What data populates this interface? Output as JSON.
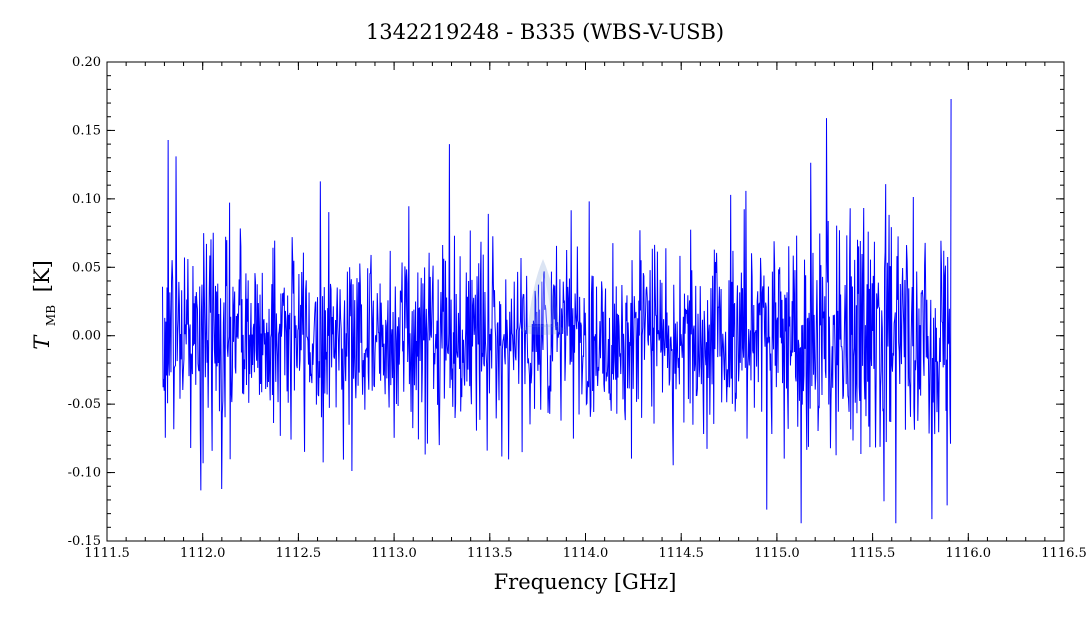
{
  "chart_data": {
    "type": "line",
    "title": "1342219248 - B335 (WBS-V-USB)",
    "xlabel": "Frequency [GHz]",
    "ylabel_main": "T",
    "ylabel_sub": "MB",
    "ylabel_unit": "[K]",
    "xlim": [
      1111.5,
      1116.5
    ],
    "ylim": [
      -0.15,
      0.2
    ],
    "x_ticks": [
      1111.5,
      1112.0,
      1112.5,
      1113.0,
      1113.5,
      1114.0,
      1114.5,
      1115.0,
      1115.5,
      1116.0,
      1116.5
    ],
    "x_tick_labels": [
      "1111.5",
      "1112.0",
      "1112.5",
      "1113.0",
      "1113.5",
      "1114.0",
      "1114.5",
      "1115.0",
      "1115.5",
      "1116.0",
      "1116.5"
    ],
    "y_ticks": [
      -0.15,
      -0.1,
      -0.05,
      0.0,
      0.05,
      0.1,
      0.15,
      0.2
    ],
    "y_tick_labels": [
      "-0.15",
      "-0.10",
      "-0.05",
      "0.00",
      "0.05",
      "0.10",
      "0.15",
      "0.20"
    ],
    "grid": false,
    "legend": "none",
    "series": [
      {
        "color": "#0000ff",
        "x_start": 1111.79,
        "x_end": 1115.91,
        "n_points": 1400,
        "mean": 0.0,
        "rms": 0.035,
        "min": -0.137,
        "max": 0.173,
        "features": [
          {
            "x": 1111.82,
            "y": 0.143
          },
          {
            "x": 1111.86,
            "y": 0.131
          },
          {
            "x": 1111.99,
            "y": -0.113
          },
          {
            "x": 1112.1,
            "y": -0.112
          },
          {
            "x": 1113.29,
            "y": 0.14
          },
          {
            "x": 1115.26,
            "y": 0.159
          },
          {
            "x": 1115.56,
            "y": -0.121
          },
          {
            "x": 1115.62,
            "y": -0.137
          },
          {
            "x": 1115.81,
            "y": -0.134
          },
          {
            "x": 1115.89,
            "y": -0.124
          },
          {
            "x": 1115.91,
            "y": 0.173
          }
        ]
      }
    ]
  },
  "watermark": {
    "name": "herschel-logo-watermark",
    "color": "#6d8fd0"
  }
}
